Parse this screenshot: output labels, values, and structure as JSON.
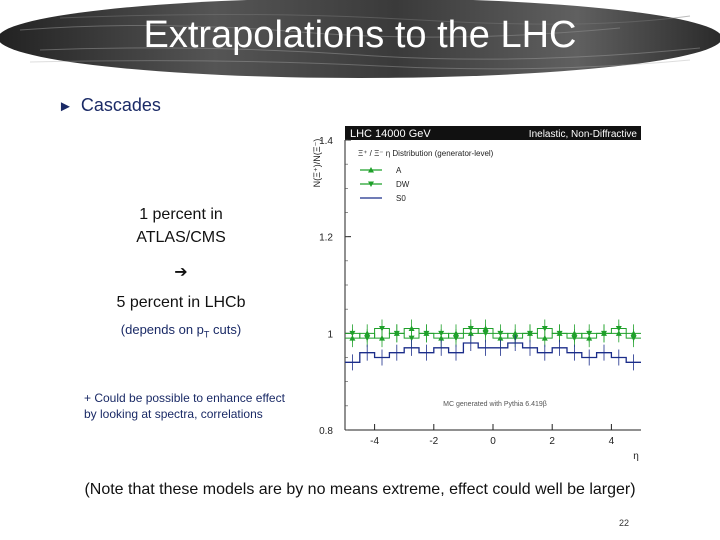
{
  "slide": {
    "title": "Extrapolations to the LHC",
    "bullet": "Cascades",
    "main_text": {
      "line1": "1 percent in",
      "line2": "ATLAS/CMS",
      "arrow": "➔",
      "line3": "5 percent in LHCb"
    },
    "depends_note": {
      "prefix": "(depends on p",
      "sub": "T",
      "suffix": " cuts)"
    },
    "plus_note": {
      "line1": "+ Could be possible to enhance effect",
      "line2": "by looking at spectra, correlations"
    },
    "footer": "(Note that these models are by no means extreme, effect could well be larger)",
    "slide_number": "22"
  },
  "chart_data": {
    "type": "line",
    "title": "LHC 14000 GeV",
    "title_right": "Inelastic, Non-Diffractive",
    "subtitle": "Ξ⁺ / Ξ⁻ η Distribution (generator-level)",
    "xlabel": "η",
    "ylabel": "N(Ξ⁺)/N(Ξ⁻)",
    "xlim": [
      -5,
      5
    ],
    "ylim": [
      0.8,
      1.4
    ],
    "x_ticks": [
      -4,
      -2,
      0,
      2,
      4
    ],
    "x_tick_labels": [
      "-4",
      "-2",
      "0",
      "2",
      "4"
    ],
    "y_ticks": [
      0.8,
      1,
      1.2,
      1.4
    ],
    "y_tick_labels": [
      "0.8",
      "1",
      "1.2",
      "1.4"
    ],
    "annotation": "MC generated with Pythia 6.419β",
    "x": [
      -4.75,
      -4.25,
      -3.75,
      -3.25,
      -2.75,
      -2.25,
      -1.75,
      -1.25,
      -0.75,
      -0.25,
      0.25,
      0.75,
      1.25,
      1.75,
      2.25,
      2.75,
      3.25,
      3.75,
      4.25,
      4.75
    ],
    "series": [
      {
        "name": "A",
        "color": "#1fa02a",
        "marker": "triangle-up",
        "values": [
          0.99,
          1.0,
          0.99,
          1.0,
          1.01,
          1.0,
          0.99,
          1.0,
          1.0,
          1.01,
          0.99,
          1.0,
          1.0,
          0.99,
          1.0,
          1.0,
          0.99,
          1.0,
          1.0,
          1.0
        ]
      },
      {
        "name": "DW",
        "color": "#1fa02a",
        "marker": "triangle-down",
        "values": [
          1.0,
          0.99,
          1.01,
          1.0,
          0.99,
          1.0,
          1.0,
          0.99,
          1.01,
          1.0,
          1.0,
          0.99,
          1.0,
          1.01,
          1.0,
          0.99,
          1.0,
          1.0,
          1.01,
          0.99
        ]
      },
      {
        "name": "S0",
        "color": "#1b2d8a",
        "marker": "none",
        "values": [
          0.94,
          0.96,
          0.95,
          0.96,
          0.97,
          0.96,
          0.97,
          0.96,
          0.98,
          0.97,
          0.97,
          0.98,
          0.97,
          0.96,
          0.97,
          0.96,
          0.95,
          0.96,
          0.95,
          0.94
        ]
      }
    ]
  }
}
